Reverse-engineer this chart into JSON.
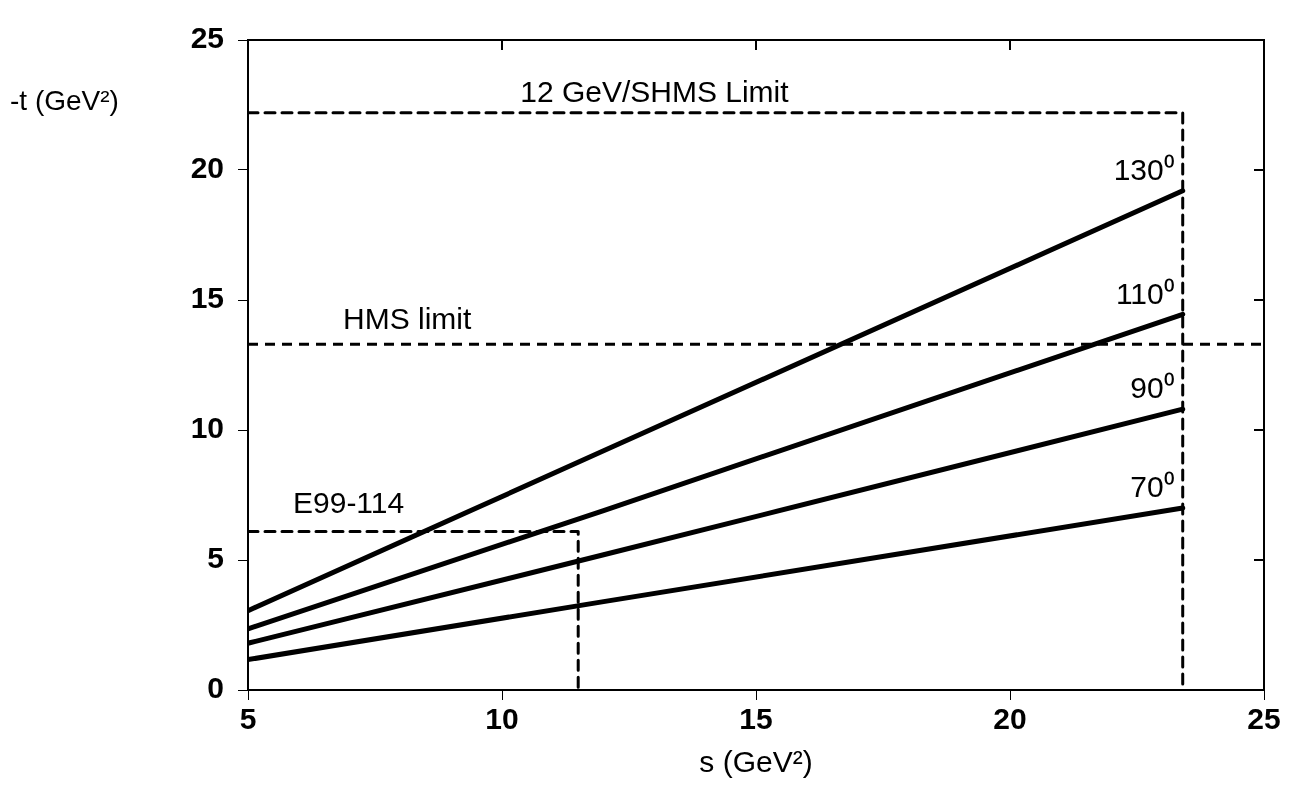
{
  "chart_data": {
    "type": "line",
    "xlabel": "s (GeV²)",
    "ylabel": "-t (GeV²)",
    "xlim": [
      5,
      25
    ],
    "ylim": [
      0,
      25
    ],
    "xticks": [
      5,
      10,
      15,
      20,
      25
    ],
    "yticks": [
      0,
      5,
      10,
      15,
      20,
      25
    ],
    "grid": false,
    "legend": false,
    "marker": "none",
    "series": [
      {
        "name": "130⁰",
        "color": "#000000",
        "x": [
          5,
          12,
          23.4
        ],
        "values": [
          3.05,
          9.2,
          19.2
        ],
        "line_style": "solid"
      },
      {
        "name": "110⁰",
        "color": "#000000",
        "x": [
          5,
          12,
          23.4
        ],
        "values": [
          2.35,
          6.9,
          14.45
        ],
        "line_style": "solid"
      },
      {
        "name": "90⁰",
        "color": "#000000",
        "x": [
          5,
          12,
          23.4
        ],
        "values": [
          1.8,
          5.2,
          10.8
        ],
        "line_style": "solid"
      },
      {
        "name": "70⁰",
        "color": "#000000",
        "x": [
          5,
          12,
          23.4
        ],
        "values": [
          1.17,
          3.4,
          7.0
        ],
        "line_style": "solid"
      },
      {
        "name": "E99-114",
        "color": "#000000",
        "x": [
          5,
          11.5,
          11.5
        ],
        "values": [
          6.1,
          6.1,
          0
        ],
        "line_style": "dashed"
      },
      {
        "color": "#000000",
        "x": [
          5,
          23.4,
          23.4
        ],
        "values": [
          22.2,
          22.2,
          0
        ],
        "line_style": "dashed"
      }
    ],
    "annotations": [
      {
        "text": "12 GeV/SHMS Limit",
        "x": 13,
        "y": 22.2
      }
    ],
    "ref_lines": [
      {
        "axis": "y",
        "value": 13.3,
        "label": "HMS limit",
        "line_style": "dashed",
        "color": "#000000"
      }
    ]
  }
}
